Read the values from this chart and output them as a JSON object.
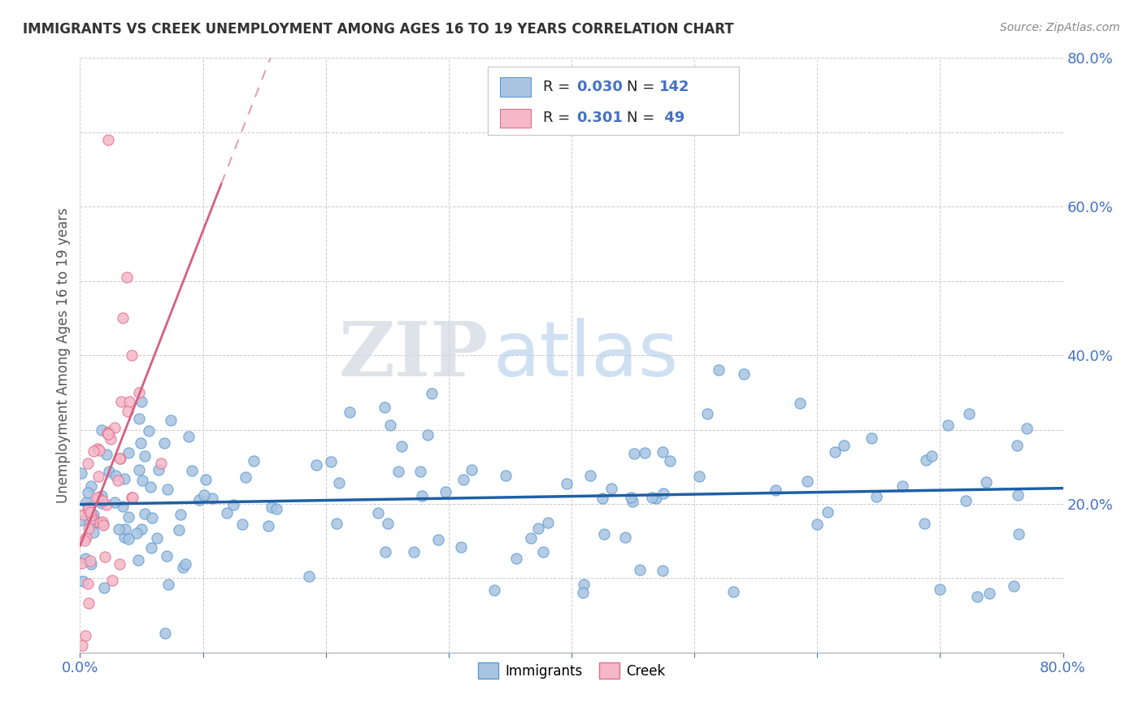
{
  "title": "IMMIGRANTS VS CREEK UNEMPLOYMENT AMONG AGES 16 TO 19 YEARS CORRELATION CHART",
  "source": "Source: ZipAtlas.com",
  "ylabel": "Unemployment Among Ages 16 to 19 years",
  "xlim": [
    0.0,
    0.8
  ],
  "ylim": [
    0.0,
    0.8
  ],
  "immigrant_color": "#a8c4e0",
  "immigrant_edge": "#5b9bd5",
  "creek_color": "#f4b8c8",
  "creek_edge": "#e07090",
  "trend_immigrant_color": "#1f5fa6",
  "trend_creek_solid_color": "#d46080",
  "trend_creek_dash_color": "#e8a0b0",
  "R_immigrant": 0.03,
  "N_immigrant": 142,
  "R_creek": 0.301,
  "N_creek": 49,
  "watermark_zip": "ZIP",
  "watermark_atlas": "atlas",
  "background_color": "#ffffff",
  "grid_color": "#cccccc",
  "title_color": "#333333",
  "tick_label_color": "#4472c4",
  "legend_blue_color": "#4472c4",
  "legend_immigrant_label": "Immigrants",
  "legend_creek_label": "Creek"
}
